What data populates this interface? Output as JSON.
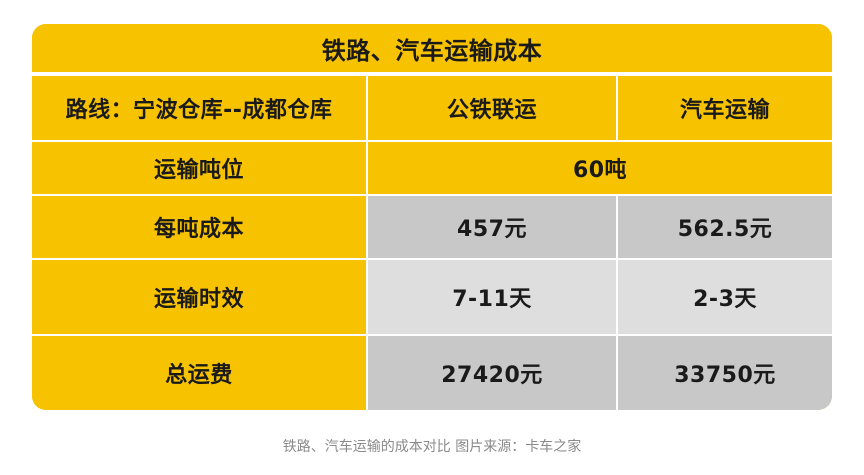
{
  "table": {
    "title": "铁路、汽车运输成本",
    "header": {
      "route": "路线：宁波仓库--成都仓库",
      "rail": "公铁联运",
      "truck": "汽车运输"
    },
    "rows": [
      {
        "label": "运输吨位",
        "value": "60吨"
      },
      {
        "label": "每吨成本",
        "rail": "457元",
        "truck": "562.5元"
      },
      {
        "label": "运输时效",
        "rail": "7-11天",
        "truck": "2-3天"
      },
      {
        "label": "总运费",
        "rail": "27420元",
        "truck": "33750元"
      }
    ]
  },
  "caption": "铁路、汽车运输的成本对比 图片来源：卡车之家",
  "colors": {
    "accent_yellow": "#f7c200",
    "cell_gray": "#c8c8c8",
    "cell_lightgray": "#dedede",
    "text": "#1a1a1a",
    "caption": "#8a8a8a"
  }
}
